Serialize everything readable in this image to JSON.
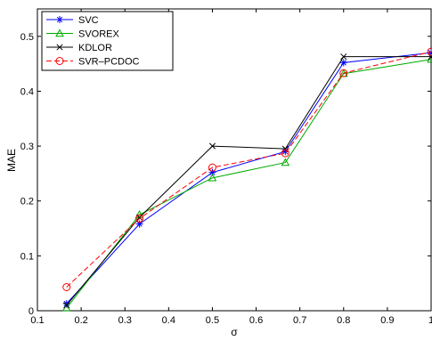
{
  "chart_data": {
    "type": "line",
    "xlabel": "σ",
    "ylabel": "MAE",
    "xlim": [
      0.1,
      1
    ],
    "ylim": [
      0,
      0.55
    ],
    "xticks": [
      "0.1",
      "0.2",
      "0.3",
      "0.4",
      "0.5",
      "0.6",
      "0.7",
      "0.8",
      "0.9",
      "1"
    ],
    "yticks": [
      "0",
      "0.1",
      "0.2",
      "0.3",
      "0.4",
      "0.5"
    ],
    "grid": false,
    "legend_position": "top-left",
    "x": [
      0.1667,
      0.3333,
      0.5,
      0.6667,
      0.8,
      1.0
    ],
    "series": [
      {
        "name": "SVC",
        "values": [
          0.013,
          0.158,
          0.252,
          0.29,
          0.452,
          0.47
        ],
        "color": "#0000ff",
        "marker": "asterisk",
        "dash": "solid"
      },
      {
        "name": "SVOREX",
        "values": [
          0.005,
          0.175,
          0.242,
          0.27,
          0.432,
          0.458
        ],
        "color": "#00aa00",
        "marker": "triangle",
        "dash": "solid"
      },
      {
        "name": "KDLOR",
        "values": [
          0.01,
          0.17,
          0.3,
          0.295,
          0.463,
          0.463
        ],
        "color": "#000000",
        "marker": "x",
        "dash": "solid"
      },
      {
        "name": "SVR–PCDOC",
        "values": [
          0.043,
          0.168,
          0.261,
          0.287,
          0.433,
          0.472
        ],
        "color": "#ff0000",
        "marker": "circle",
        "dash": "dashed"
      }
    ]
  }
}
